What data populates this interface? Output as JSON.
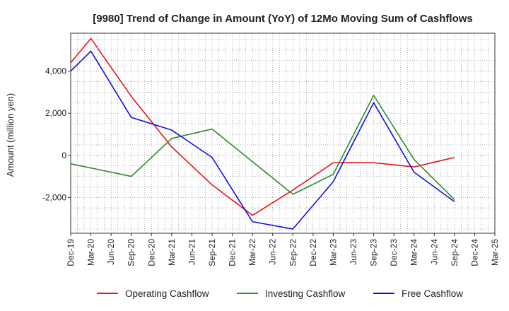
{
  "chart_data": {
    "type": "line",
    "title": "[9980]  Trend of Change in Amount (YoY) of 12Mo Moving Sum of Cashflows",
    "xlabel": "",
    "ylabel": "Amount (million yen)",
    "categories": [
      "Dec-19",
      "Mar-20",
      "Jun-20",
      "Sep-20",
      "Dec-20",
      "Mar-21",
      "Jun-21",
      "Sep-21",
      "Dec-21",
      "Mar-22",
      "Jun-22",
      "Sep-22",
      "Dec-22",
      "Mar-23",
      "Jun-23",
      "Sep-23",
      "Dec-23",
      "Mar-24",
      "Jun-24",
      "Sep-24",
      "Dec-24",
      "Mar-25"
    ],
    "ylim": [
      -3700,
      5800
    ],
    "yticks": [
      4000,
      2000,
      0,
      -2000
    ],
    "ytick_labels": [
      "4,000",
      "2,000",
      "0",
      "-2,000"
    ],
    "grid": true,
    "legend_position": "bottom",
    "series": [
      {
        "name": "Operating Cashflow",
        "color": "#e31a1c",
        "values": [
          4400,
          5550,
          null,
          2800,
          null,
          400,
          null,
          -1400,
          null,
          -2850,
          null,
          -1650,
          null,
          -350,
          null,
          -350,
          null,
          -550,
          null,
          -100,
          null,
          null
        ]
      },
      {
        "name": "Investing Cashflow",
        "color": "#2e8b2e",
        "values": [
          -400,
          -600,
          null,
          -1000,
          null,
          800,
          null,
          1250,
          null,
          -300,
          null,
          -1850,
          null,
          -900,
          null,
          2850,
          null,
          -200,
          null,
          -2100,
          null,
          null
        ]
      },
      {
        "name": "Free Cashflow",
        "color": "#1010e0",
        "values": [
          4000,
          4950,
          null,
          1800,
          null,
          1200,
          null,
          -100,
          null,
          -3150,
          null,
          -3500,
          null,
          -1250,
          null,
          2500,
          null,
          -800,
          null,
          -2200,
          null,
          null
        ]
      }
    ]
  }
}
